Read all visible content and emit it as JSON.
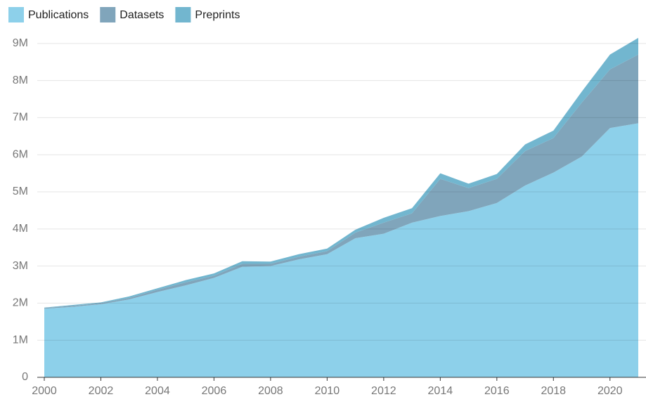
{
  "chart_data": {
    "type": "stacked_area",
    "x": [
      2000,
      2001,
      2002,
      2003,
      2004,
      2005,
      2006,
      2007,
      2008,
      2009,
      2010,
      2011,
      2012,
      2013,
      2014,
      2015,
      2016,
      2017,
      2018,
      2019,
      2020,
      2021
    ],
    "series": [
      {
        "name": "Publications",
        "color": "#8dd0ea",
        "values": [
          1850000,
          1900000,
          1970000,
          2100000,
          2300000,
          2480000,
          2680000,
          2980000,
          3000000,
          3180000,
          3320000,
          3750000,
          3870000,
          4170000,
          4350000,
          4480000,
          4700000,
          5170000,
          5520000,
          5950000,
          6720000,
          6850000
        ]
      },
      {
        "name": "Datasets",
        "color": "#80a5bb",
        "values": [
          20000,
          30000,
          30000,
          40000,
          60000,
          80000,
          60000,
          80000,
          60000,
          70000,
          80000,
          150000,
          300000,
          250000,
          1000000,
          620000,
          650000,
          930000,
          930000,
          1450000,
          1580000,
          1850000
        ]
      },
      {
        "name": "Preprints",
        "color": "#72b6cf",
        "values": [
          10000,
          20000,
          20000,
          40000,
          40000,
          60000,
          60000,
          70000,
          60000,
          70000,
          70000,
          80000,
          130000,
          140000,
          150000,
          120000,
          130000,
          180000,
          200000,
          300000,
          400000,
          450000
        ]
      }
    ],
    "xlim": [
      2000,
      2021
    ],
    "xticks": [
      2000,
      2002,
      2004,
      2006,
      2008,
      2010,
      2012,
      2014,
      2016,
      2018,
      2020
    ],
    "ylim": [
      0,
      9300000
    ],
    "yticks": [
      0,
      {
        "value": 1000000,
        "label": "1M"
      },
      {
        "value": 2000000,
        "label": "2M"
      },
      {
        "value": 3000000,
        "label": "3M"
      },
      {
        "value": 4000000,
        "label": "4M"
      },
      {
        "value": 5000000,
        "label": "5M"
      },
      {
        "value": 6000000,
        "label": "6M"
      },
      {
        "value": 7000000,
        "label": "7M"
      },
      {
        "value": 8000000,
        "label": "8M"
      },
      {
        "value": 9000000,
        "label": "9M"
      }
    ],
    "grid": true,
    "legend": "top-left"
  }
}
